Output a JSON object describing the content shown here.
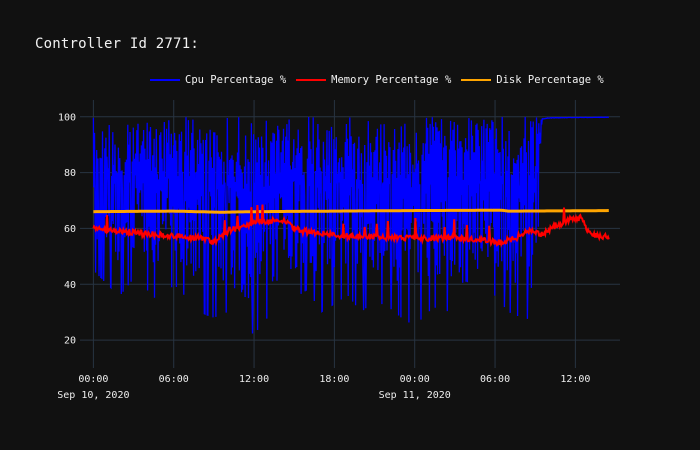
{
  "chart_data": {
    "type": "line",
    "title": "Controller Id 2771:",
    "xlabel": "",
    "ylabel": "",
    "x_range": [
      "2020-09-09T23:00",
      "2020-09-11T15:20"
    ],
    "ylim": [
      10,
      106
    ],
    "y_ticks": [
      20,
      40,
      60,
      80,
      100
    ],
    "x_ticks": [
      {
        "time": "2020-09-10T00:00",
        "label": "00:00",
        "date_label": "Sep 10, 2020"
      },
      {
        "time": "2020-09-10T06:00",
        "label": "06:00",
        "date_label": ""
      },
      {
        "time": "2020-09-10T12:00",
        "label": "12:00",
        "date_label": ""
      },
      {
        "time": "2020-09-10T18:00",
        "label": "18:00",
        "date_label": ""
      },
      {
        "time": "2020-09-11T00:00",
        "label": "00:00",
        "date_label": "Sep 11, 2020"
      },
      {
        "time": "2020-09-11T06:00",
        "label": "06:00",
        "date_label": ""
      },
      {
        "time": "2020-09-11T12:00",
        "label": "12:00",
        "date_label": ""
      }
    ],
    "grid": true,
    "legend_position": "top-right",
    "start": "2020-09-10T00:00",
    "end": "2020-09-11T14:30",
    "series": [
      {
        "name": "Cpu Percentage %",
        "color": "#0000ff",
        "x": [
          "2020-09-10T00:00",
          "2020-09-10T01:00",
          "2020-09-10T02:00",
          "2020-09-10T03:00",
          "2020-09-10T04:00",
          "2020-09-10T05:00",
          "2020-09-10T06:00",
          "2020-09-10T07:00",
          "2020-09-10T08:00",
          "2020-09-10T09:00",
          "2020-09-10T10:00",
          "2020-09-10T11:00",
          "2020-09-10T12:00",
          "2020-09-10T13:00",
          "2020-09-10T14:00",
          "2020-09-10T15:00",
          "2020-09-10T16:00",
          "2020-09-10T17:00",
          "2020-09-10T18:00",
          "2020-09-10T19:00",
          "2020-09-10T20:00",
          "2020-09-10T21:00",
          "2020-09-10T22:00",
          "2020-09-10T23:00",
          "2020-09-11T00:00",
          "2020-09-11T01:00",
          "2020-09-11T02:00",
          "2020-09-11T03:00",
          "2020-09-11T04:00",
          "2020-09-11T05:00",
          "2020-09-11T06:00",
          "2020-09-11T07:00",
          "2020-09-11T08:00",
          "2020-09-11T09:00",
          "2020-09-11T09:30",
          "2020-09-11T10:00",
          "2020-09-11T11:00",
          "2020-09-11T12:00",
          "2020-09-11T13:00",
          "2020-09-11T14:30"
        ],
        "low": [
          45,
          40,
          36,
          42,
          38,
          33,
          40,
          35,
          30,
          28,
          30,
          25,
          22,
          28,
          30,
          35,
          38,
          30,
          33,
          36,
          30,
          34,
          32,
          28,
          25,
          30,
          33,
          27,
          30,
          32,
          36,
          30,
          28,
          27,
          99,
          99.5,
          99.6,
          99.7,
          99.7,
          99.8
        ],
        "high": [
          100,
          100,
          100,
          100,
          100,
          100,
          100,
          100,
          100,
          100,
          100,
          100,
          100,
          100,
          100,
          100,
          100,
          100,
          100,
          100,
          100,
          100,
          100,
          100,
          100,
          100,
          100,
          100,
          100,
          100,
          100,
          100,
          100,
          100,
          100,
          100,
          100,
          100,
          100,
          100
        ]
      },
      {
        "name": "Memory Percentage %",
        "color": "#ff0000",
        "x": [
          "2020-09-10T00:00",
          "2020-09-10T02:00",
          "2020-09-10T04:00",
          "2020-09-10T06:00",
          "2020-09-10T08:00",
          "2020-09-10T09:00",
          "2020-09-10T10:00",
          "2020-09-10T12:00",
          "2020-09-10T14:00",
          "2020-09-10T15:30",
          "2020-09-10T18:00",
          "2020-09-10T21:00",
          "2020-09-11T00:00",
          "2020-09-11T03:00",
          "2020-09-11T05:00",
          "2020-09-11T06:20",
          "2020-09-11T07:30",
          "2020-09-11T08:30",
          "2020-09-11T09:30",
          "2020-09-11T10:30",
          "2020-09-11T11:30",
          "2020-09-11T12:30",
          "2020-09-11T13:00",
          "2020-09-11T14:30"
        ],
        "values": [
          60,
          59,
          58,
          57.5,
          56.5,
          55,
          59,
          62,
          63,
          59,
          57.5,
          57,
          56.5,
          56.5,
          56,
          55,
          56.5,
          59,
          58,
          61,
          63,
          64,
          58,
          57
        ]
      },
      {
        "name": "Disk Percentage %",
        "color": "#ffa500",
        "x": [
          "2020-09-10T00:00",
          "2020-09-10T06:00",
          "2020-09-10T09:30",
          "2020-09-10T12:00",
          "2020-09-10T18:00",
          "2020-09-11T00:00",
          "2020-09-11T06:30",
          "2020-09-11T07:00",
          "2020-09-11T12:00",
          "2020-09-11T14:30"
        ],
        "values": [
          66,
          66.2,
          65.8,
          66,
          66.2,
          66.4,
          66.5,
          66.2,
          66.3,
          66.4
        ]
      }
    ]
  }
}
